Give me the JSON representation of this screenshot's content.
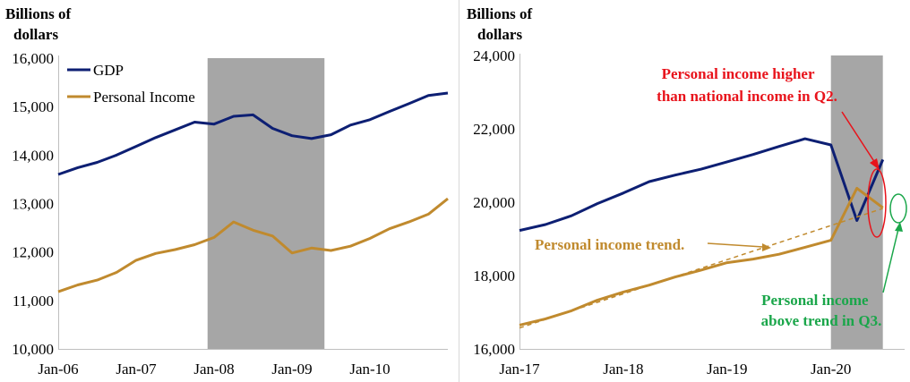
{
  "chart_data": [
    {
      "type": "line",
      "ylabel": "Billions of dollars",
      "ylim": [
        10000,
        16000
      ],
      "yticks": [
        "16,000",
        "15,000",
        "14,000",
        "13,000",
        "12,000",
        "11,000",
        "10,000"
      ],
      "xticks": [
        "Jan-06",
        "Jan-07",
        "Jan-08",
        "Jan-09",
        "Jan-10"
      ],
      "xlim": [
        "2006-01",
        "2011-01"
      ],
      "recession": [
        "2007-12",
        "2009-06"
      ],
      "legend_position": "top-left",
      "series": [
        {
          "name": "GDP",
          "color": "#0d1f73",
          "points": [
            [
              "2006-01",
              13600
            ],
            [
              "2006-04",
              13740
            ],
            [
              "2006-07",
              13850
            ],
            [
              "2006-10",
              14000
            ],
            [
              "2007-01",
              14180
            ],
            [
              "2007-04",
              14360
            ],
            [
              "2007-07",
              14520
            ],
            [
              "2007-10",
              14680
            ],
            [
              "2008-01",
              14640
            ],
            [
              "2008-04",
              14800
            ],
            [
              "2008-07",
              14830
            ],
            [
              "2008-10",
              14550
            ],
            [
              "2009-01",
              14400
            ],
            [
              "2009-04",
              14340
            ],
            [
              "2009-07",
              14420
            ],
            [
              "2009-10",
              14620
            ],
            [
              "2010-01",
              14730
            ],
            [
              "2010-04",
              14900
            ],
            [
              "2010-07",
              15060
            ],
            [
              "2010-10",
              15230
            ],
            [
              "2011-01",
              15280
            ]
          ]
        },
        {
          "name": "Personal Income",
          "color": "#c08a2e",
          "points": [
            [
              "2006-01",
              11180
            ],
            [
              "2006-04",
              11320
            ],
            [
              "2006-07",
              11420
            ],
            [
              "2006-10",
              11580
            ],
            [
              "2007-01",
              11830
            ],
            [
              "2007-04",
              11970
            ],
            [
              "2007-07",
              12050
            ],
            [
              "2007-10",
              12150
            ],
            [
              "2008-01",
              12300
            ],
            [
              "2008-04",
              12620
            ],
            [
              "2008-07",
              12450
            ],
            [
              "2008-10",
              12330
            ],
            [
              "2009-01",
              11980
            ],
            [
              "2009-04",
              12080
            ],
            [
              "2009-07",
              12030
            ],
            [
              "2009-10",
              12120
            ],
            [
              "2010-01",
              12280
            ],
            [
              "2010-04",
              12480
            ],
            [
              "2010-07",
              12620
            ],
            [
              "2010-10",
              12780
            ],
            [
              "2011-01",
              13100
            ]
          ]
        }
      ]
    },
    {
      "type": "line",
      "ylabel": "Billions of dollars",
      "ylim": [
        16000,
        24000
      ],
      "yticks": [
        "24,000",
        "22,000",
        "20,000",
        "18,000",
        "16,000"
      ],
      "xticks": [
        "Jan-17",
        "Jan-18",
        "Jan-19",
        "Jan-20"
      ],
      "xlim": [
        "2017-01",
        "2020-09"
      ],
      "recession": [
        "2020-01",
        "2020-07"
      ],
      "series": [
        {
          "color": "#0d1f73",
          "points": [
            [
              "2017-01",
              19230
            ],
            [
              "2017-04",
              19390
            ],
            [
              "2017-07",
              19630
            ],
            [
              "2017-10",
              19960
            ],
            [
              "2018-01",
              20250
            ],
            [
              "2018-04",
              20560
            ],
            [
              "2018-07",
              20740
            ],
            [
              "2018-10",
              20900
            ],
            [
              "2019-01",
              21100
            ],
            [
              "2019-04",
              21300
            ],
            [
              "2019-07",
              21520
            ],
            [
              "2019-10",
              21730
            ],
            [
              "2020-01",
              21560
            ],
            [
              "2020-04",
              19500
            ],
            [
              "2020-07",
              21160
            ]
          ]
        },
        {
          "color": "#c08a2e",
          "points": [
            [
              "2017-01",
              16650
            ],
            [
              "2017-04",
              16820
            ],
            [
              "2017-07",
              17040
            ],
            [
              "2017-10",
              17330
            ],
            [
              "2018-01",
              17550
            ],
            [
              "2018-04",
              17740
            ],
            [
              "2018-07",
              17960
            ],
            [
              "2018-10",
              18150
            ],
            [
              "2019-01",
              18350
            ],
            [
              "2019-04",
              18450
            ],
            [
              "2019-07",
              18580
            ],
            [
              "2019-10",
              18770
            ],
            [
              "2020-01",
              18960
            ],
            [
              "2020-04",
              20380
            ],
            [
              "2020-07",
              19850
            ]
          ]
        },
        {
          "color": "#c08a2e",
          "dashed": true,
          "points": [
            [
              "2017-01",
              16570
            ],
            [
              "2020-07",
              19830
            ]
          ]
        }
      ],
      "annotations": [
        {
          "text": [
            "Personal income higher",
            "than national income in Q2."
          ],
          "color": "#e8131b"
        },
        {
          "text": [
            "Personal income trend."
          ],
          "color": "#c08a2e"
        },
        {
          "text": [
            "Personal income",
            "above trend in Q3."
          ],
          "color": "#1aa64a"
        }
      ]
    }
  ]
}
